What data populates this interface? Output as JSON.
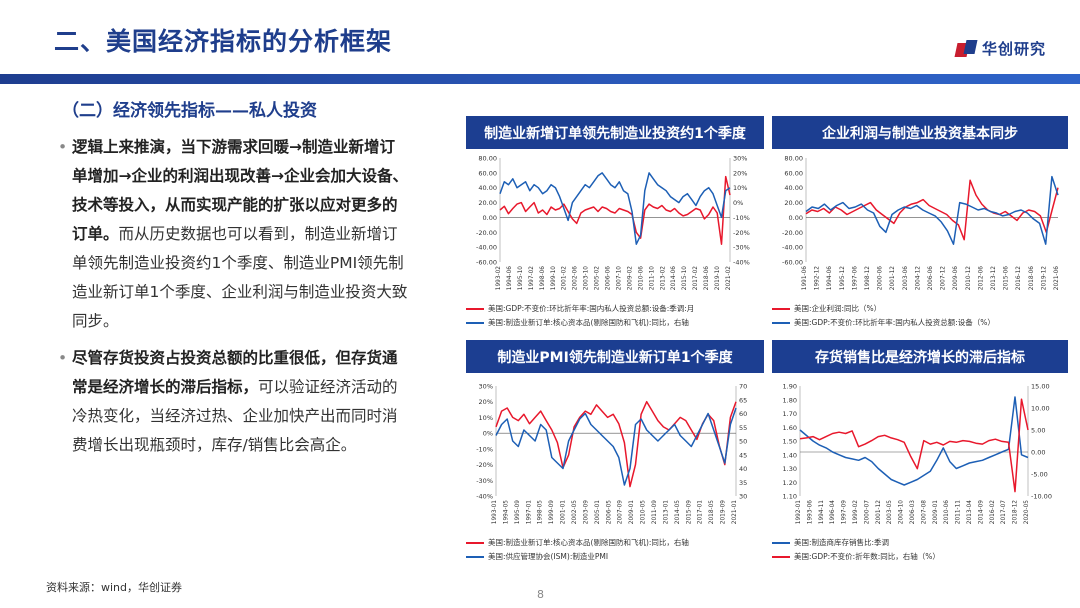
{
  "header": {
    "title": "二、美国经济指标的分析框架",
    "logo_text": "华创研究"
  },
  "section": {
    "subtitle": "（二）经济领先指标——私人投资"
  },
  "bullets": [
    {
      "bold": "逻辑上来推演，当下游需求回暖→制造业新增订单增加→企业的利润出现改善→企业会加大设备、技术等投入，从而实现产能的扩张以应对更多的订单。",
      "normal": "而从历史数据也可以看到，制造业新增订单领先制造业投资约1个季度、制造业PMI领先制造业新订单1个季度、企业利润与制造业投资大致同步。"
    },
    {
      "bold": "尽管存货投资占投资总额的比重很低，但存货通常是经济增长的滞后指标，",
      "normal": "可以验证经济活动的冷热变化，当经济过热、企业加快产出而同时消费增长出现瓶颈时，库存/销售比会高企。"
    }
  ],
  "colors": {
    "red": "#e8182c",
    "blue": "#1d5fb5",
    "navy": "#1c3e91"
  },
  "chart_data": [
    {
      "type": "line",
      "title": "制造业新增订单领先制造业投资约1个季度",
      "left_axis": {
        "ticks": [
          "80.00",
          "60.00",
          "40.00",
          "20.00",
          "0.00",
          "-20.00",
          "-40.00",
          "-60.00"
        ],
        "range": [
          -60,
          80
        ]
      },
      "right_axis": {
        "ticks": [
          "30%",
          "20%",
          "10%",
          "0%",
          "-10%",
          "-20%",
          "-30%",
          "-40%"
        ],
        "range": [
          -40,
          30
        ]
      },
      "x_ticks": [
        "1993-02",
        "1994-06",
        "1995-10",
        "1997-02",
        "1998-06",
        "1999-10",
        "2001-02",
        "2002-06",
        "2003-10",
        "2005-02",
        "2006-06",
        "2007-10",
        "2009-02",
        "2010-06",
        "2011-10",
        "2013-02",
        "2014-06",
        "2015-10",
        "2017-02",
        "2018-06",
        "2019-10",
        "2021-02"
      ],
      "series": [
        {
          "name": "美国:GDP:不变价:环比折年率:国内私人投资总额:设备:季调:月",
          "color": "red",
          "axis": "left",
          "values": [
            10,
            15,
            5,
            12,
            18,
            20,
            8,
            14,
            20,
            6,
            10,
            4,
            14,
            10,
            12,
            18,
            8,
            -2,
            -8,
            6,
            10,
            12,
            14,
            8,
            14,
            12,
            8,
            6,
            12,
            10,
            8,
            4,
            -20,
            -28,
            10,
            18,
            14,
            12,
            16,
            10,
            8,
            12,
            6,
            2,
            4,
            8,
            12,
            10,
            -2,
            4,
            14,
            6,
            -36,
            55,
            30
          ]
        },
        {
          "name": "美国:制造业新订单:核心资本品(剔除国防和飞机):同比，右轴",
          "color": "blue",
          "axis": "right",
          "values": [
            6,
            14,
            12,
            16,
            10,
            12,
            14,
            8,
            12,
            10,
            6,
            8,
            12,
            10,
            4,
            -4,
            -12,
            0,
            4,
            8,
            12,
            10,
            14,
            18,
            20,
            16,
            12,
            10,
            14,
            8,
            6,
            -6,
            -28,
            -22,
            8,
            20,
            16,
            12,
            10,
            8,
            4,
            2,
            0,
            4,
            6,
            2,
            -2,
            4,
            8,
            10,
            6,
            -2,
            -10,
            8,
            10
          ]
        }
      ],
      "legend": [
        "美国:GDP:不变价:环比折年率:国内私人投资总额:设备:季调:月",
        "美国:制造业新订单:核心资本品(剔除国防和飞机):同比，右轴"
      ]
    },
    {
      "type": "line",
      "title": "企业利润与制造业投资基本同步",
      "left_axis": {
        "ticks": [
          "80.00",
          "60.00",
          "40.00",
          "20.00",
          "0.00",
          "-20.00",
          "-40.00",
          "-60.00"
        ],
        "range": [
          -60,
          80
        ]
      },
      "x_ticks": [
        "1991-06",
        "1992-12",
        "1994-06",
        "1995-12",
        "1997-06",
        "1998-12",
        "2000-06",
        "2001-12",
        "2003-06",
        "2004-12",
        "2006-06",
        "2007-12",
        "2009-06",
        "2010-12",
        "2012-06",
        "2013-12",
        "2015-06",
        "2016-12",
        "2018-06",
        "2019-12",
        "2021-06"
      ],
      "series": [
        {
          "name": "美国:企业利润:同比（%）",
          "color": "red",
          "axis": "left",
          "values": [
            5,
            10,
            8,
            12,
            6,
            14,
            10,
            4,
            8,
            12,
            16,
            20,
            10,
            4,
            -2,
            -8,
            6,
            14,
            18,
            20,
            24,
            16,
            12,
            8,
            4,
            -4,
            -10,
            -30,
            50,
            30,
            18,
            10,
            6,
            4,
            8,
            2,
            -4,
            6,
            10,
            8,
            2,
            -20,
            10,
            40
          ]
        },
        {
          "name": "美国:GDP:不变价:环比折年率:国内私人投资总额:设备（%）",
          "color": "blue",
          "axis": "left",
          "values": [
            8,
            14,
            12,
            18,
            10,
            16,
            20,
            12,
            14,
            18,
            10,
            6,
            -12,
            -20,
            4,
            10,
            14,
            12,
            16,
            10,
            6,
            2,
            -6,
            -18,
            -36,
            20,
            18,
            14,
            10,
            12,
            8,
            6,
            2,
            4,
            8,
            10,
            6,
            -2,
            -8,
            -36,
            55,
            30
          ]
        }
      ],
      "legend": [
        "美国:企业利润:同比（%）",
        "美国:GDP:不变价:环比折年率:国内私人投资总额:设备（%）"
      ]
    },
    {
      "type": "line",
      "title": "制造业PMI领先制造业新订单1个季度",
      "left_axis": {
        "ticks": [
          "30%",
          "20%",
          "10%",
          "0%",
          "-10%",
          "-20%",
          "-30%",
          "-40%"
        ],
        "range": [
          -40,
          30
        ]
      },
      "right_axis": {
        "ticks": [
          "70",
          "65",
          "60",
          "55",
          "50",
          "45",
          "40",
          "35",
          "30"
        ],
        "range": [
          30,
          70
        ]
      },
      "x_ticks": [
        "1993-01",
        "1994-05",
        "1995-09",
        "1997-01",
        "1998-05",
        "1999-09",
        "2001-01",
        "2002-05",
        "2003-09",
        "2005-01",
        "2006-05",
        "2007-09",
        "2009-01",
        "2010-05",
        "2011-09",
        "2013-01",
        "2014-05",
        "2015-09",
        "2017-01",
        "2018-05",
        "2019-09",
        "2021-01"
      ],
      "series": [
        {
          "name": "美国:制造业新订单:核心资本品(剔除国防和飞机):同比，右轴",
          "color": "red",
          "axis": "left",
          "values": [
            4,
            14,
            16,
            10,
            8,
            12,
            6,
            10,
            14,
            8,
            2,
            -6,
            -22,
            -14,
            4,
            10,
            14,
            12,
            18,
            14,
            10,
            12,
            6,
            -6,
            -34,
            -20,
            12,
            20,
            14,
            8,
            4,
            2,
            6,
            10,
            8,
            2,
            -4,
            6,
            12,
            8,
            -8,
            -20,
            10,
            20
          ]
        },
        {
          "name": "美国:供应管理协会(ISM):制造业PMI",
          "color": "blue",
          "axis": "right",
          "values": [
            52,
            56,
            58,
            50,
            48,
            54,
            52,
            50,
            56,
            54,
            44,
            42,
            40,
            50,
            54,
            58,
            60,
            56,
            54,
            52,
            50,
            48,
            44,
            34,
            40,
            56,
            58,
            54,
            52,
            50,
            52,
            54,
            56,
            52,
            50,
            48,
            52,
            56,
            60,
            54,
            48,
            42,
            56,
            62
          ]
        }
      ],
      "legend": [
        "美国:制造业新订单:核心资本品(剔除国防和飞机):同比，右轴",
        "美国:供应管理协会(ISM):制造业PMI"
      ]
    },
    {
      "type": "line",
      "title": "存货销售比是经济增长的滞后指标",
      "left_axis": {
        "ticks": [
          "1.90",
          "1.80",
          "1.70",
          "1.60",
          "1.50",
          "1.40",
          "1.30",
          "1.20",
          "1.10"
        ],
        "range": [
          1.1,
          1.9
        ]
      },
      "right_axis": {
        "ticks": [
          "15.00",
          "10.00",
          "5.00",
          "0.00",
          "-5.00",
          "-10.00"
        ],
        "range": [
          -10,
          15
        ]
      },
      "x_ticks": [
        "1992-01",
        "1993-06",
        "1994-11",
        "1996-04",
        "1997-09",
        "1999-02",
        "2000-07",
        "2001-12",
        "2003-05",
        "2004-10",
        "2006-03",
        "2007-08",
        "2009-01",
        "2010-06",
        "2011-11",
        "2013-04",
        "2014-09",
        "2016-02",
        "2017-07",
        "2018-12",
        "2020-05"
      ],
      "series": [
        {
          "name": "美国:制造商库存销售比:季调",
          "color": "blue",
          "axis": "left",
          "values": [
            1.58,
            1.54,
            1.5,
            1.47,
            1.45,
            1.42,
            1.4,
            1.38,
            1.37,
            1.36,
            1.38,
            1.35,
            1.3,
            1.26,
            1.22,
            1.2,
            1.18,
            1.2,
            1.22,
            1.25,
            1.28,
            1.36,
            1.45,
            1.35,
            1.3,
            1.32,
            1.34,
            1.35,
            1.36,
            1.38,
            1.4,
            1.42,
            1.44,
            1.82,
            1.4,
            1.38
          ]
        },
        {
          "name": "美国:GDP:不变价:折年数:同比，右轴（%）",
          "color": "red",
          "axis": "right",
          "values": [
            3,
            3.2,
            3.5,
            2.8,
            3.5,
            4.2,
            4.5,
            4.2,
            4.8,
            1.2,
            1.8,
            2.6,
            3.5,
            3.8,
            3.2,
            2.8,
            2.2,
            -1,
            -3.8,
            2.6,
            1.8,
            2.2,
            1.6,
            2.4,
            2.2,
            2.6,
            2.4,
            2,
            1.8,
            2.6,
            2.9,
            2.4,
            2.2,
            -9,
            12,
            5
          ]
        }
      ],
      "legend": [
        "美国:制造商库存销售比:季调",
        "美国:GDP:不变价:折年数:同比，右轴（%）"
      ]
    }
  ],
  "footer": {
    "source": "资料来源：wind，华创证券",
    "page": "8"
  }
}
